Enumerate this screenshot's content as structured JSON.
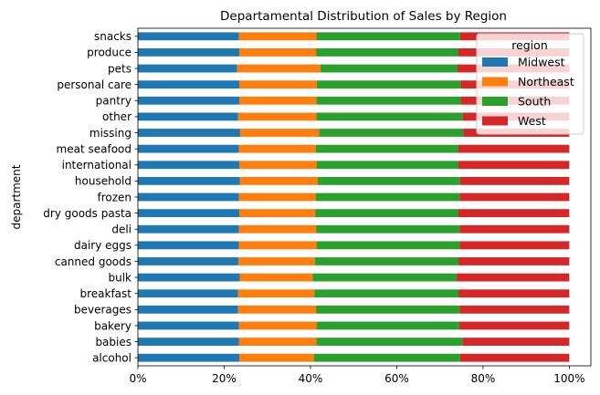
{
  "chart_data": {
    "type": "bar",
    "orientation": "horizontal",
    "stacked": true,
    "normalized": true,
    "title": "Departamental Distribution of Sales by Region",
    "xlabel": "",
    "ylabel": "department",
    "xlim": [
      0,
      1.05
    ],
    "xticks": [
      0,
      0.2,
      0.4,
      0.6,
      0.8,
      1.0
    ],
    "xtick_labels": [
      "0%",
      "20%",
      "40%",
      "60%",
      "80%",
      "100%"
    ],
    "grid": false,
    "legend": {
      "title": "region",
      "placement": "top-right"
    },
    "categories": [
      "alcohol",
      "babies",
      "bakery",
      "beverages",
      "breakfast",
      "bulk",
      "canned goods",
      "dairy eggs",
      "deli",
      "dry goods pasta",
      "frozen",
      "household",
      "international",
      "meat seafood",
      "missing",
      "other",
      "pantry",
      "personal care",
      "pets",
      "produce",
      "snacks"
    ],
    "series": [
      {
        "name": "Midwest",
        "color": "#1f77b4",
        "values": [
          0.235,
          0.234,
          0.234,
          0.232,
          0.232,
          0.236,
          0.233,
          0.234,
          0.234,
          0.235,
          0.234,
          0.236,
          0.235,
          0.234,
          0.237,
          0.232,
          0.235,
          0.235,
          0.23,
          0.235,
          0.234
        ]
      },
      {
        "name": "Northeast",
        "color": "#ff7f0e",
        "values": [
          0.173,
          0.18,
          0.18,
          0.181,
          0.177,
          0.169,
          0.177,
          0.18,
          0.179,
          0.176,
          0.178,
          0.181,
          0.179,
          0.178,
          0.183,
          0.182,
          0.179,
          0.18,
          0.193,
          0.178,
          0.18
        ]
      },
      {
        "name": "South",
        "color": "#2ca02c",
        "values": [
          0.339,
          0.338,
          0.331,
          0.333,
          0.334,
          0.334,
          0.333,
          0.332,
          0.333,
          0.332,
          0.334,
          0.33,
          0.329,
          0.331,
          0.334,
          0.339,
          0.334,
          0.333,
          0.318,
          0.33,
          0.333
        ]
      },
      {
        "name": "West",
        "color": "#d62728",
        "values": [
          0.253,
          0.248,
          0.255,
          0.254,
          0.257,
          0.261,
          0.257,
          0.254,
          0.254,
          0.257,
          0.254,
          0.253,
          0.257,
          0.257,
          0.246,
          0.247,
          0.252,
          0.252,
          0.259,
          0.257,
          0.253
        ]
      }
    ]
  }
}
